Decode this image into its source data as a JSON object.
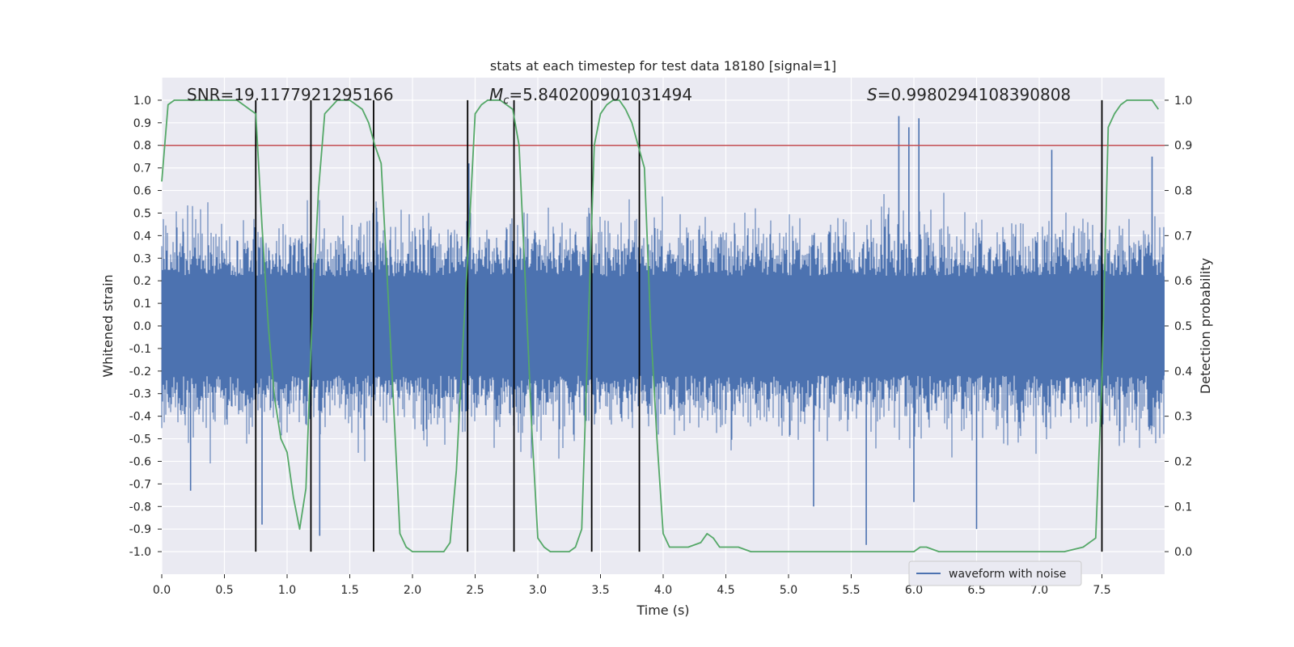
{
  "chart_data": {
    "type": "line",
    "title": "stats at each timestep for test data 18180 [signal=1]",
    "xlabel": "Time (s)",
    "ylabel": "Whitened strain",
    "y2label": "Detection probability",
    "xlim": [
      0.0,
      8.0
    ],
    "ylim": [
      -1.1,
      1.1
    ],
    "y2lim": [
      -0.05,
      1.05
    ],
    "xticks": [
      0.0,
      0.5,
      1.0,
      1.5,
      2.0,
      2.5,
      3.0,
      3.5,
      4.0,
      4.5,
      5.0,
      5.5,
      6.0,
      6.5,
      7.0,
      7.5
    ],
    "xtick_labels": [
      "0.0",
      "0.5",
      "1.0",
      "1.5",
      "2.0",
      "2.5",
      "3.0",
      "3.5",
      "4.0",
      "4.5",
      "5.0",
      "5.5",
      "6.0",
      "6.5",
      "7.0",
      "7.5"
    ],
    "yticks": [
      1.0,
      0.9,
      0.8,
      0.7,
      0.6,
      0.5,
      0.4,
      0.3,
      0.2,
      0.1,
      0.0,
      -0.1,
      -0.2,
      -0.3,
      -0.4,
      -0.5,
      -0.6,
      -0.7,
      -0.8,
      -0.9,
      -1.0
    ],
    "ytick_labels": [
      "1.0",
      "0.9",
      "0.8",
      "0.7",
      "0.6",
      "0.5",
      "0.4",
      "0.3",
      "0.2",
      "0.1",
      "0.0",
      "-0.1",
      "-0.2",
      "-0.3",
      "-0.4",
      "-0.5",
      "-0.6",
      "-0.7",
      "-0.8",
      "-0.9",
      "-1.0"
    ],
    "y2ticks": [
      1.0,
      0.9,
      0.8,
      0.7,
      0.6,
      0.5,
      0.4,
      0.3,
      0.2,
      0.1,
      0.0
    ],
    "y2tick_labels": [
      "1.0",
      "0.9",
      "0.8",
      "0.7",
      "0.6",
      "0.5",
      "0.4",
      "0.3",
      "0.2",
      "0.1",
      "0.0"
    ],
    "grid": true,
    "annotations": [
      {
        "text": "SNR=19.1177921295166",
        "x": 0.2,
        "y": 1.03
      },
      {
        "text": "=5.840200901031494",
        "math": "M",
        "sub": "c",
        "x": 2.6,
        "y": 1.03
      },
      {
        "text": "=0.9980294108390808",
        "math": "S",
        "x": 5.75,
        "y": 1.03
      }
    ],
    "threshold": {
      "value": 0.9,
      "axis": "y2",
      "color": "#c44e52"
    },
    "event_lines": [
      0.75,
      1.19,
      1.69,
      2.44,
      2.81,
      3.43,
      3.81,
      7.5
    ],
    "series": [
      {
        "name": "waveform with noise",
        "axis": "y",
        "color": "#4c72b0",
        "kind": "noise",
        "core_amplitude": 0.4,
        "typical_peak": 0.55,
        "spikes": [
          {
            "x": 5.88,
            "y": 0.93
          },
          {
            "x": 5.96,
            "y": 0.88
          },
          {
            "x": 6.04,
            "y": 0.92
          },
          {
            "x": 5.62,
            "y": -0.97
          },
          {
            "x": 6.5,
            "y": -0.9
          },
          {
            "x": 1.26,
            "y": -0.93
          },
          {
            "x": 0.8,
            "y": -0.88
          },
          {
            "x": 2.45,
            "y": 0.72
          },
          {
            "x": 7.9,
            "y": 0.75
          },
          {
            "x": 0.23,
            "y": -0.73
          },
          {
            "x": 5.2,
            "y": -0.8
          },
          {
            "x": 7.1,
            "y": 0.78
          },
          {
            "x": 3.43,
            "y": -0.85
          },
          {
            "x": 6.0,
            "y": -0.78
          }
        ]
      },
      {
        "name": "detection probability",
        "axis": "y2",
        "color": "#55a868",
        "x": [
          0.0,
          0.05,
          0.1,
          0.2,
          0.3,
          0.4,
          0.5,
          0.6,
          0.65,
          0.7,
          0.75,
          0.8,
          0.85,
          0.9,
          0.95,
          1.0,
          1.05,
          1.1,
          1.15,
          1.2,
          1.25,
          1.3,
          1.4,
          1.5,
          1.55,
          1.6,
          1.65,
          1.7,
          1.75,
          1.8,
          1.85,
          1.9,
          1.95,
          2.0,
          2.1,
          2.2,
          2.25,
          2.3,
          2.35,
          2.4,
          2.45,
          2.5,
          2.55,
          2.6,
          2.7,
          2.75,
          2.8,
          2.85,
          2.9,
          2.95,
          3.0,
          3.05,
          3.1,
          3.2,
          3.25,
          3.3,
          3.35,
          3.4,
          3.45,
          3.5,
          3.55,
          3.6,
          3.65,
          3.7,
          3.75,
          3.8,
          3.85,
          3.9,
          3.95,
          4.0,
          4.05,
          4.1,
          4.2,
          4.3,
          4.35,
          4.4,
          4.45,
          4.5,
          4.6,
          4.7,
          4.8,
          5.0,
          5.2,
          5.4,
          5.5,
          5.6,
          5.8,
          6.0,
          6.05,
          6.1,
          6.2,
          6.3,
          6.35,
          6.4,
          6.5,
          6.6,
          6.8,
          7.0,
          7.2,
          7.35,
          7.45,
          7.5,
          7.55,
          7.6,
          7.65,
          7.7,
          7.8,
          7.9,
          7.95
        ],
        "y": [
          0.82,
          0.99,
          1.0,
          1.0,
          1.0,
          1.0,
          1.0,
          1.0,
          0.99,
          0.98,
          0.97,
          0.72,
          0.5,
          0.34,
          0.25,
          0.22,
          0.12,
          0.05,
          0.14,
          0.52,
          0.8,
          0.97,
          1.0,
          1.0,
          0.99,
          0.98,
          0.95,
          0.9,
          0.86,
          0.6,
          0.32,
          0.04,
          0.01,
          0.0,
          0.0,
          0.0,
          0.0,
          0.02,
          0.18,
          0.45,
          0.7,
          0.97,
          0.99,
          1.0,
          1.0,
          0.99,
          0.98,
          0.9,
          0.6,
          0.28,
          0.03,
          0.01,
          0.0,
          0.0,
          0.0,
          0.01,
          0.05,
          0.48,
          0.9,
          0.97,
          0.99,
          1.0,
          1.0,
          0.98,
          0.95,
          0.9,
          0.85,
          0.5,
          0.25,
          0.04,
          0.01,
          0.01,
          0.01,
          0.02,
          0.04,
          0.03,
          0.01,
          0.01,
          0.01,
          0.0,
          0.0,
          0.0,
          0.0,
          0.0,
          0.0,
          0.0,
          0.0,
          0.0,
          0.01,
          0.01,
          0.0,
          0.0,
          0.0,
          0.0,
          0.0,
          0.0,
          0.0,
          0.0,
          0.0,
          0.01,
          0.03,
          0.38,
          0.94,
          0.97,
          0.99,
          1.0,
          1.0,
          1.0,
          0.98
        ]
      }
    ],
    "legend": {
      "position": "lower-right",
      "entries": [
        "waveform with noise"
      ]
    }
  }
}
